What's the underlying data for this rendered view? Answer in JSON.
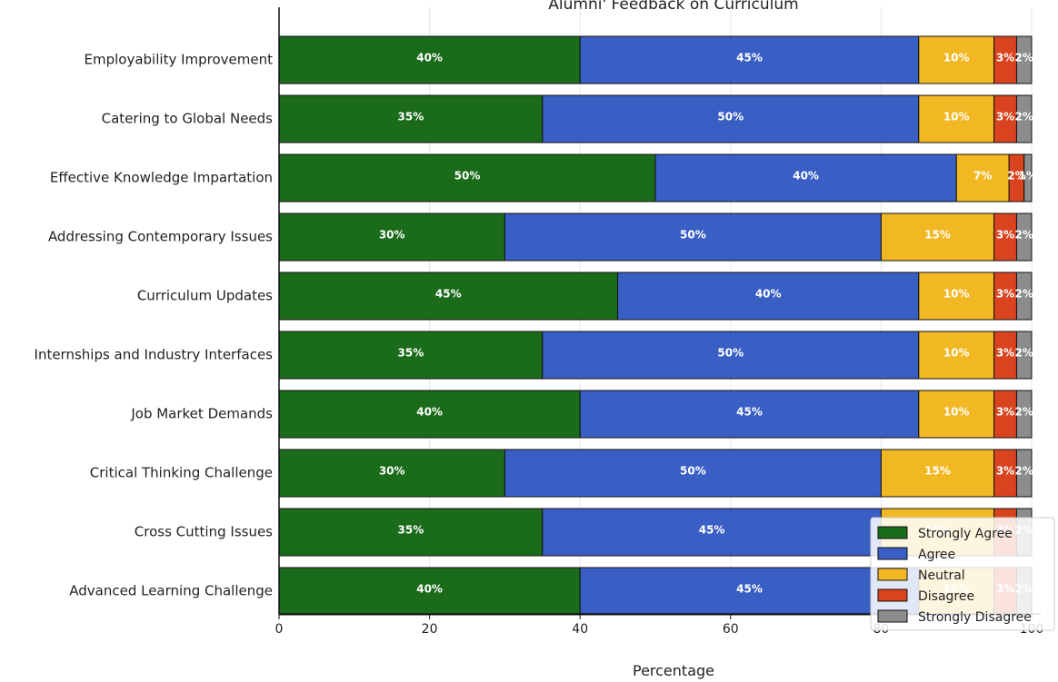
{
  "chart_data": {
    "type": "bar",
    "orientation": "horizontal",
    "stacked": true,
    "title": "Alumni' Feedback on Curriculum",
    "xlabel": "Percentage",
    "ylabel": "",
    "xlim": [
      0,
      100
    ],
    "xticks": [
      "0",
      "20",
      "40",
      "60",
      "80",
      "100"
    ],
    "grid": true,
    "legend_position": "bottom-right",
    "categories": [
      "Employability Improvement",
      "Catering to Global Needs",
      "Effective Knowledge Impartation",
      "Addressing Contemporary Issues",
      "Curriculum Updates",
      "Internships and Industry Interfaces",
      "Job Market Demands",
      "Critical Thinking Challenge",
      "Cross Cutting Issues",
      "Advanced Learning Challenge"
    ],
    "series": [
      {
        "name": "Strongly Agree",
        "color": "#1a6b1a",
        "values": [
          40,
          35,
          50,
          30,
          45,
          35,
          40,
          30,
          35,
          40
        ]
      },
      {
        "name": "Agree",
        "color": "#3a5fc4",
        "values": [
          45,
          50,
          40,
          50,
          40,
          50,
          45,
          50,
          45,
          45
        ]
      },
      {
        "name": "Neutral",
        "color": "#f2b824",
        "values": [
          10,
          10,
          7,
          15,
          10,
          10,
          10,
          15,
          15,
          10
        ]
      },
      {
        "name": "Disagree",
        "color": "#d9441f",
        "values": [
          3,
          3,
          2,
          3,
          3,
          3,
          3,
          3,
          3,
          3
        ]
      },
      {
        "name": "Strongly Disagree",
        "color": "#8c8c8c",
        "values": [
          2,
          2,
          1,
          2,
          2,
          2,
          2,
          2,
          2,
          2
        ]
      }
    ]
  }
}
